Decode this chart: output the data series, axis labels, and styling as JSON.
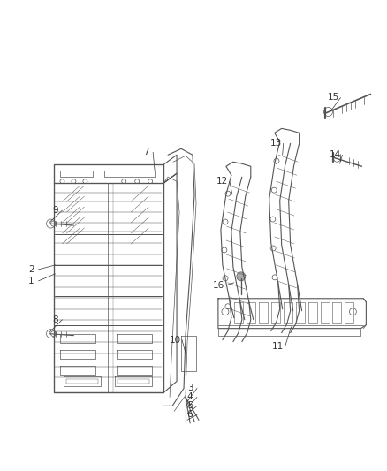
{
  "bg_color": "#ffffff",
  "line_color": "#555555",
  "line_width": 0.8,
  "thin_line": 0.5,
  "fig_width": 4.38,
  "fig_height": 5.33,
  "dpi": 100,
  "label_fontsize": 7.5,
  "label_color": "#333333"
}
